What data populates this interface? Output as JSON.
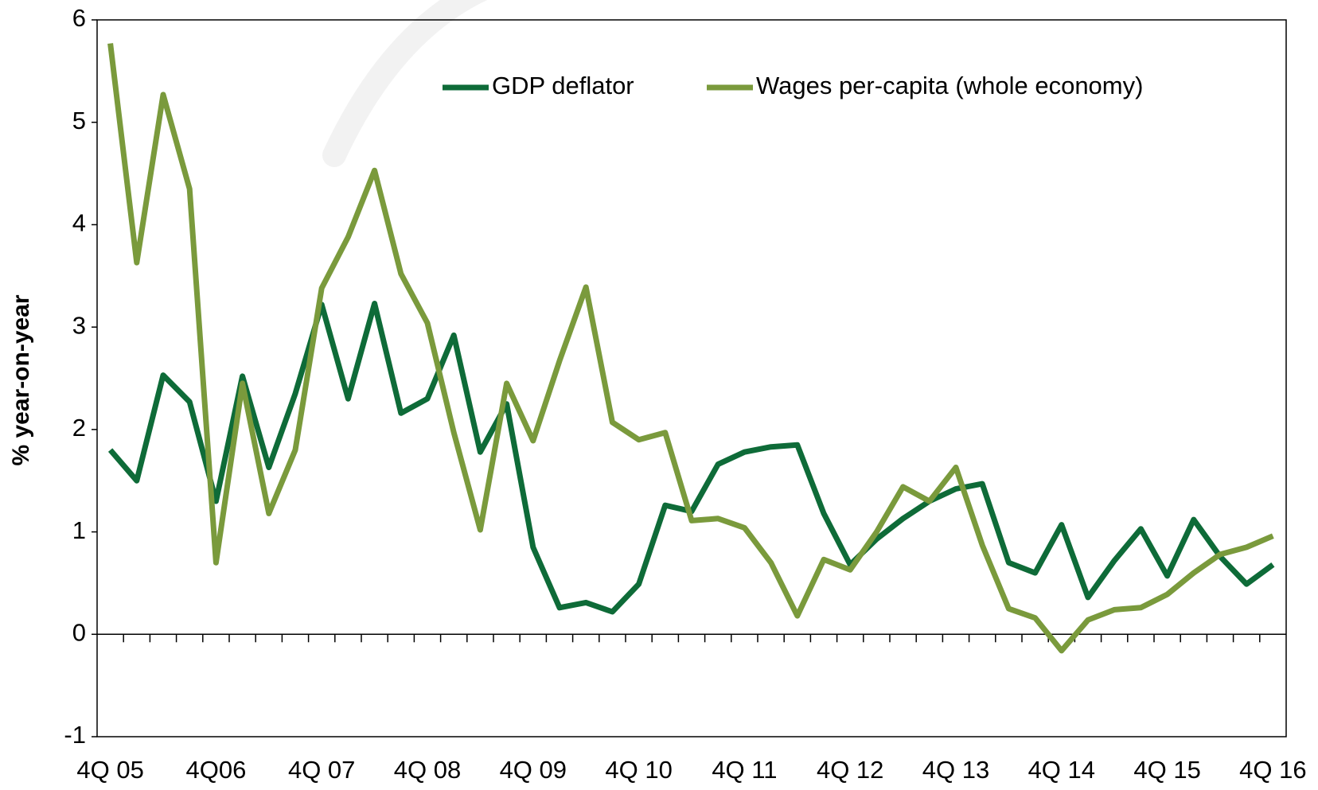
{
  "chart_data": {
    "type": "line",
    "y_label": "% year-on-year",
    "categories": [
      "4Q 05",
      null,
      null,
      null,
      "4Q06",
      null,
      null,
      null,
      "4Q 07",
      null,
      null,
      null,
      "4Q 08",
      null,
      null,
      null,
      "4Q 09",
      null,
      null,
      null,
      "4Q 10",
      null,
      null,
      null,
      "4Q 11",
      null,
      null,
      null,
      "4Q 12",
      null,
      null,
      null,
      "4Q 13",
      null,
      null,
      null,
      "4Q 14",
      null,
      null,
      null,
      "4Q 15",
      null,
      null,
      null,
      "4Q 16"
    ],
    "series": [
      {
        "name": "GDP deflator",
        "color": "#0e6b38",
        "values": [
          1.8,
          1.5,
          2.53,
          2.27,
          1.3,
          2.52,
          1.63,
          2.35,
          3.22,
          2.3,
          3.23,
          2.16,
          2.3,
          2.92,
          1.78,
          2.25,
          0.85,
          0.26,
          0.31,
          0.22,
          0.49,
          1.26,
          1.2,
          1.66,
          1.78,
          1.83,
          1.85,
          1.18,
          0.68,
          0.93,
          1.13,
          1.3,
          1.42,
          1.47,
          0.7,
          0.6,
          1.07,
          0.36,
          0.72,
          1.03,
          0.57,
          1.12,
          0.76,
          0.49,
          0.68
        ]
      },
      {
        "name": "Wages per-capita (whole economy)",
        "color": "#7a9a3c",
        "values": [
          5.77,
          3.63,
          5.27,
          4.35,
          0.7,
          2.45,
          1.18,
          1.8,
          3.38,
          3.88,
          4.53,
          3.52,
          3.04,
          1.97,
          1.02,
          2.45,
          1.89,
          2.67,
          3.39,
          2.07,
          1.9,
          1.97,
          1.11,
          1.13,
          1.04,
          0.7,
          0.18,
          0.73,
          0.63,
          1.0,
          1.44,
          1.3,
          1.63,
          0.87,
          0.25,
          0.16,
          -0.16,
          0.14,
          0.24,
          0.26,
          0.39,
          0.6,
          0.78,
          0.85,
          0.96
        ]
      }
    ],
    "ylim": [
      -1,
      6
    ],
    "yticks": [
      -1,
      0,
      1,
      2,
      3,
      4,
      5,
      6
    ],
    "grid": false,
    "legend": "top"
  }
}
